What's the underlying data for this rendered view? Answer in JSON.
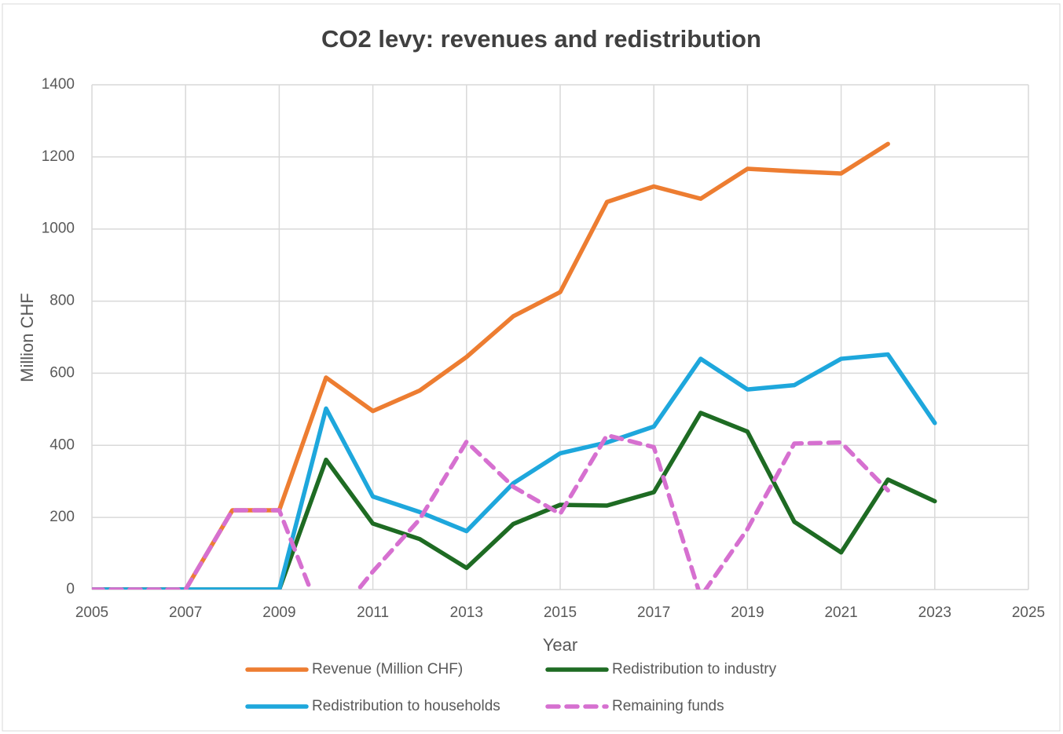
{
  "chart_data": {
    "type": "line",
    "title": "CO2 levy: revenues and redistribution",
    "x_label": "Year",
    "y_label": "Million CHF",
    "x": [
      2005,
      2006,
      2007,
      2008,
      2009,
      2010,
      2011,
      2012,
      2013,
      2014,
      2015,
      2016,
      2017,
      2018,
      2019,
      2020,
      2021,
      2022,
      2023
    ],
    "series": [
      {
        "name": "Revenue (Million CHF)",
        "color": "#ed7d31",
        "dashed": false,
        "values": [
          0,
          0,
          0,
          220,
          220,
          588,
          495,
          552,
          645,
          758,
          825,
          1075,
          1118,
          1084,
          1167,
          1160,
          1154,
          1236,
          null
        ]
      },
      {
        "name": "Redistribution to industry",
        "color": "#1e6b23",
        "dashed": false,
        "values": [
          0,
          0,
          0,
          0,
          0,
          360,
          183,
          140,
          60,
          182,
          235,
          233,
          270,
          490,
          438,
          188,
          103,
          305,
          245
        ]
      },
      {
        "name": "Redistribution to households",
        "color": "#1ea7dc",
        "dashed": false,
        "values": [
          0,
          0,
          0,
          0,
          0,
          502,
          258,
          215,
          162,
          295,
          378,
          408,
          452,
          640,
          555,
          567,
          640,
          652,
          462
        ]
      },
      {
        "name": "Remaining funds",
        "color": "#d670d0",
        "dashed": true,
        "values": [
          0,
          0,
          0,
          220,
          220,
          -110,
          50,
          195,
          410,
          285,
          210,
          428,
          395,
          -20,
          168,
          405,
          408,
          275,
          null
        ]
      }
    ],
    "xlim": [
      2005,
      2025
    ],
    "xticks": [
      2005,
      2007,
      2009,
      2011,
      2013,
      2015,
      2017,
      2019,
      2021,
      2023,
      2025
    ],
    "ylim": [
      0,
      1400
    ],
    "yticks": [
      0,
      200,
      400,
      600,
      800,
      1000,
      1200,
      1400
    ],
    "grid": true,
    "legend": "bottom"
  }
}
